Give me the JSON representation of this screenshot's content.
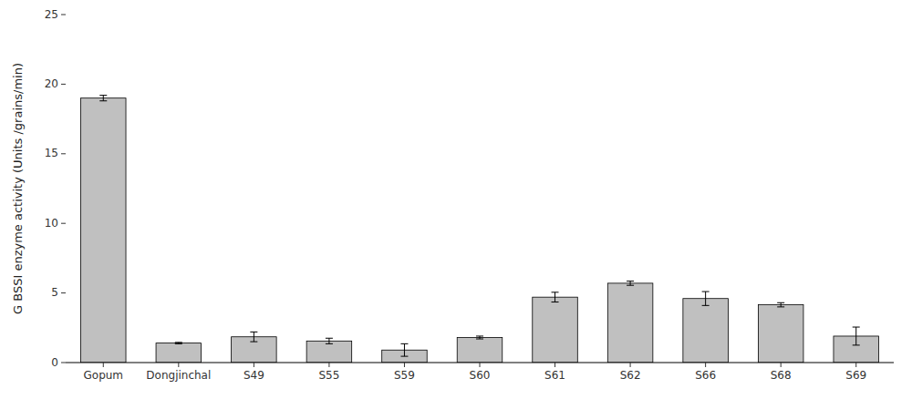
{
  "chart_data": {
    "type": "bar",
    "ylabel": "G BSSI enzyme activity  (Units /grains/min)",
    "categories": [
      "Gopum",
      "Dongjinchal",
      "S49",
      "S55",
      "S59",
      "S60",
      "S61",
      "S62",
      "S66",
      "S68",
      "S69"
    ],
    "values": [
      19.0,
      1.4,
      1.85,
      1.55,
      0.9,
      1.8,
      4.7,
      5.7,
      4.6,
      4.15,
      1.9
    ],
    "errors": [
      0.2,
      0.05,
      0.35,
      0.2,
      0.45,
      0.1,
      0.35,
      0.15,
      0.5,
      0.15,
      0.65
    ],
    "color": "#c0c0c0",
    "ylim": [
      0,
      25
    ],
    "yticks": [
      0,
      5,
      10,
      15,
      20,
      25
    ],
    "grid": false
  }
}
